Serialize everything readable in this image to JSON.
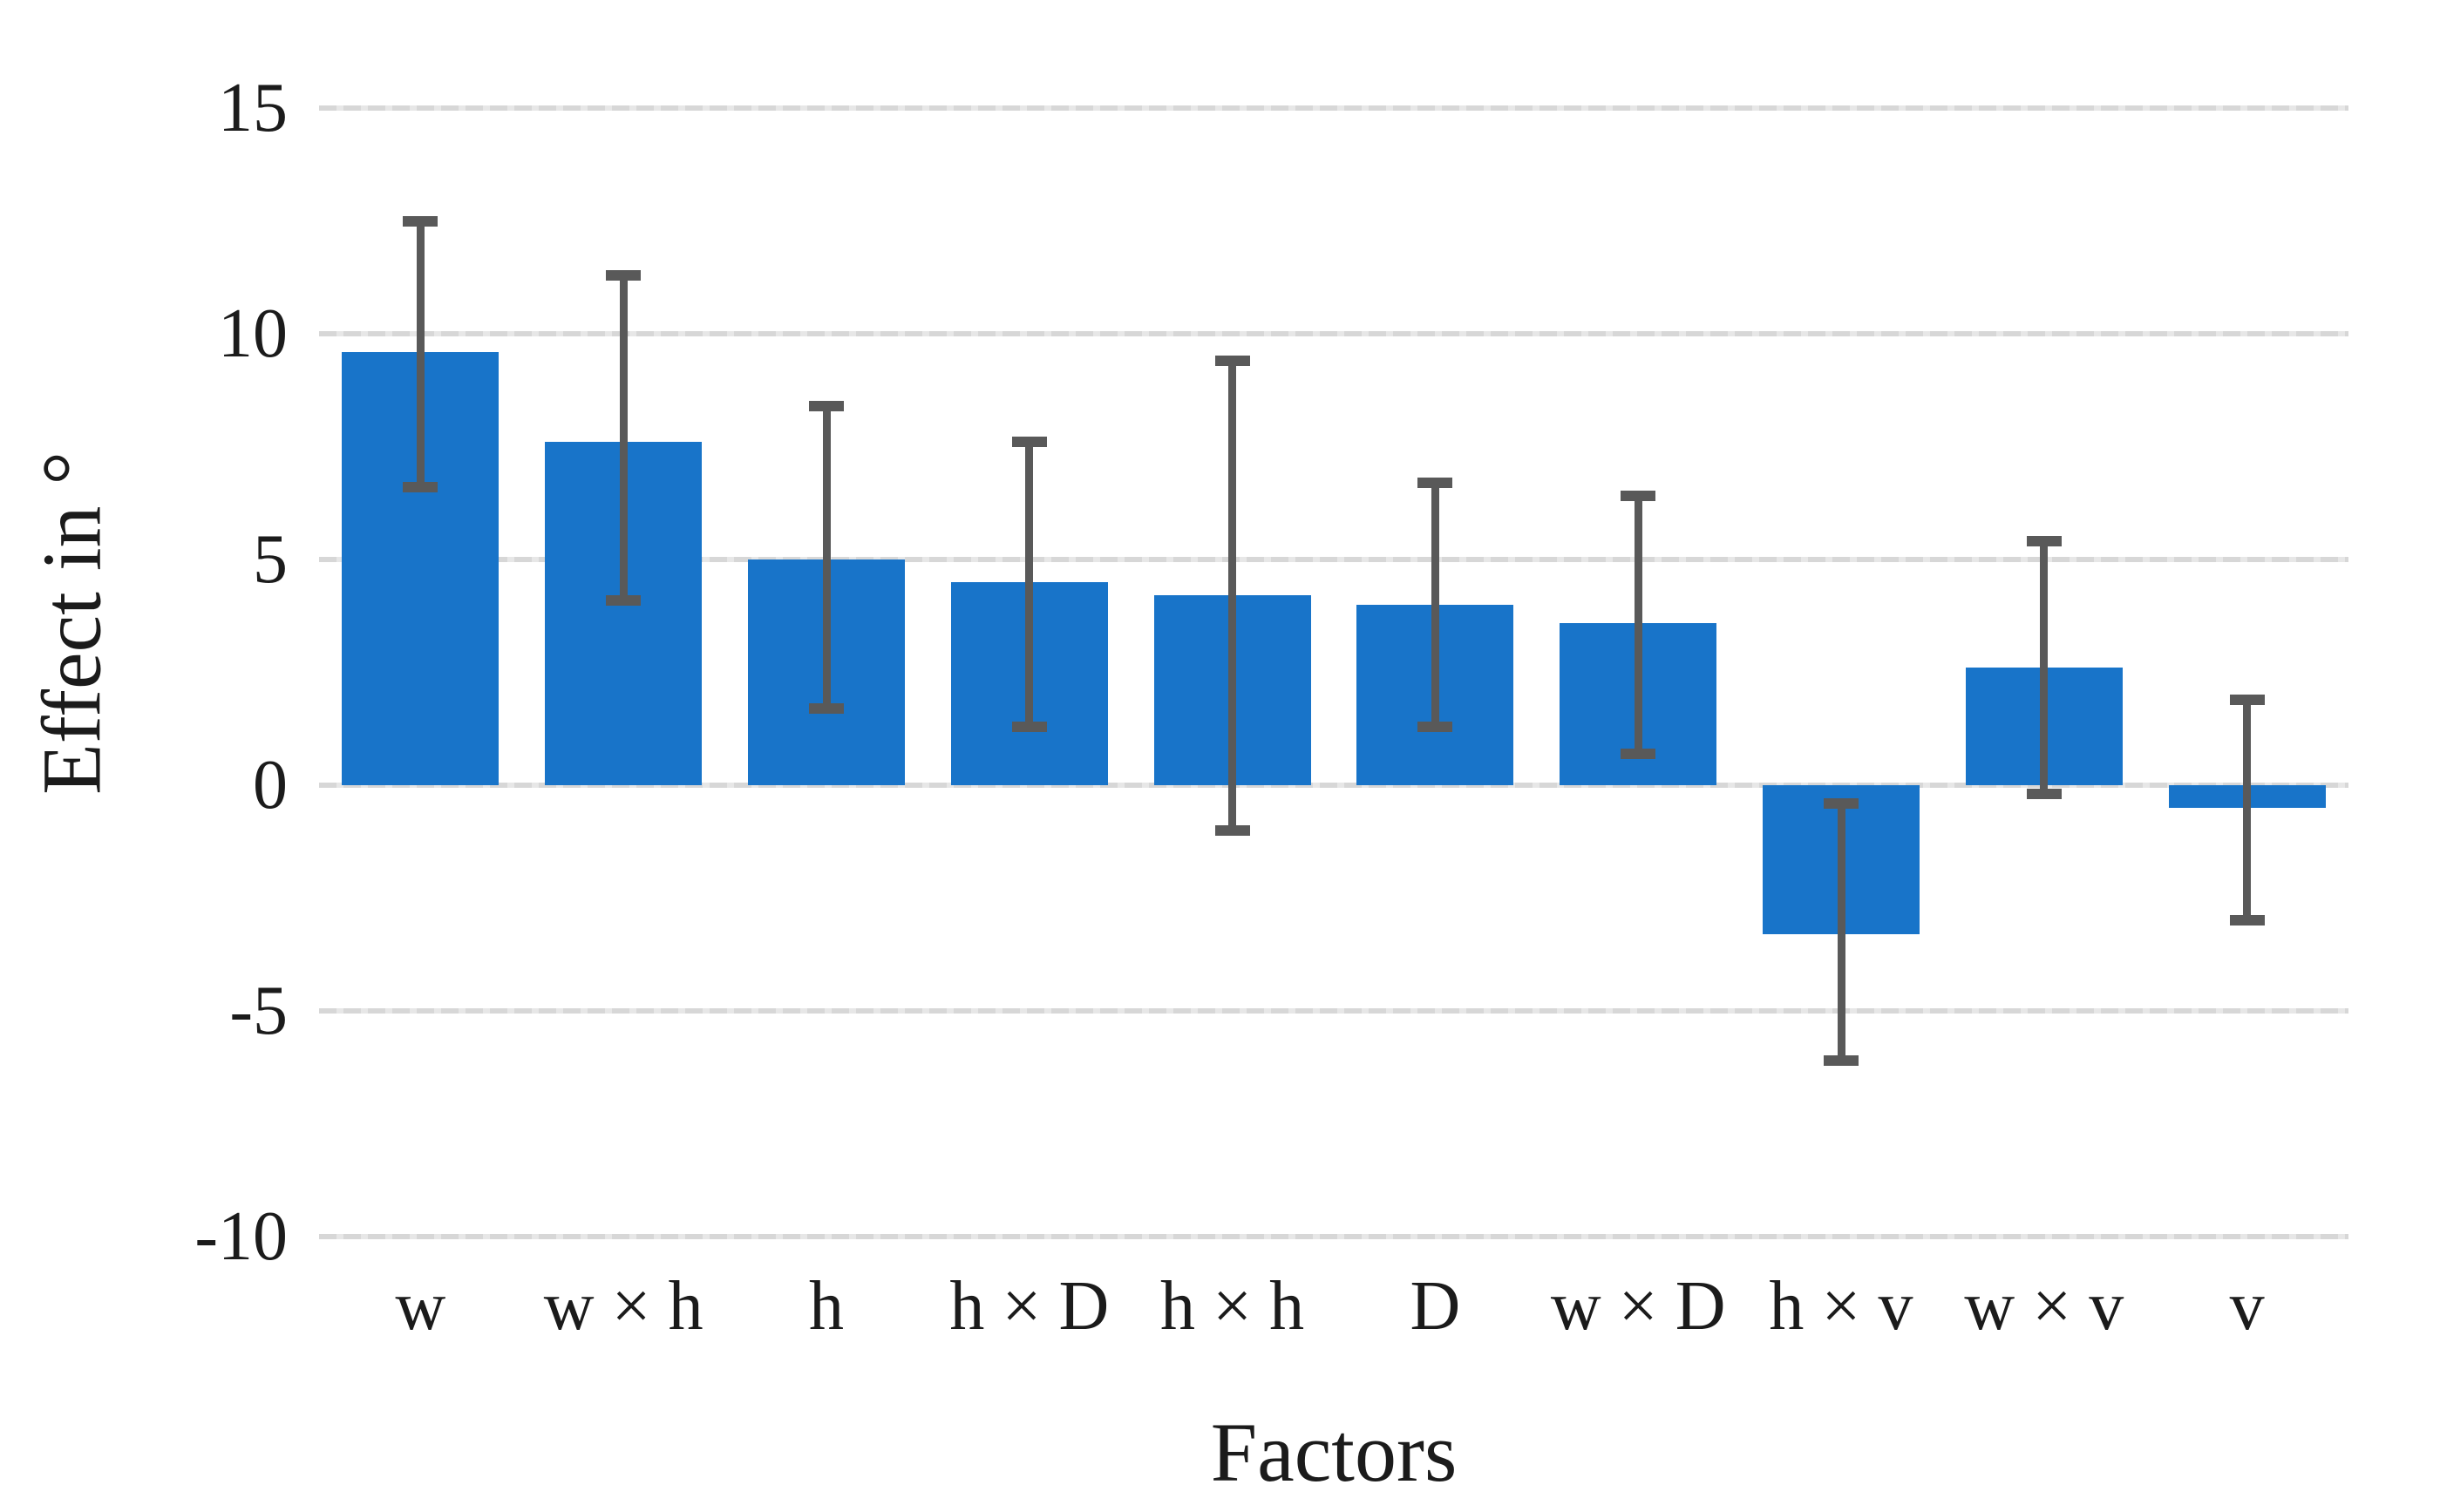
{
  "figure": {
    "background": "#ffffff"
  },
  "colors": {
    "bar": "#1874c9",
    "error_bar": "#595959",
    "gridline": "#d9d9d9",
    "text": "#1b1b1b"
  },
  "chart_data": {
    "type": "bar",
    "title": "",
    "xlabel": "Factors",
    "ylabel": "Effect in °",
    "categories": [
      "w",
      "w × h",
      "h",
      "h × D",
      "h × h",
      "D",
      "w × D",
      "h × v",
      "w × v",
      "v"
    ],
    "values": [
      9.6,
      7.6,
      5.0,
      4.5,
      4.2,
      4.0,
      3.6,
      -3.3,
      2.6,
      -0.5
    ],
    "error_low": [
      6.6,
      4.1,
      1.7,
      1.3,
      -1.0,
      1.3,
      0.7,
      -6.1,
      -0.2,
      -3.0
    ],
    "error_high": [
      12.5,
      11.3,
      8.4,
      7.6,
      9.4,
      6.7,
      6.4,
      -0.4,
      5.4,
      1.9
    ],
    "yticks": [
      15,
      10,
      5,
      0,
      -5,
      -10
    ],
    "ylim": [
      -10,
      15
    ],
    "grid": "horizontal",
    "legend": "none"
  }
}
